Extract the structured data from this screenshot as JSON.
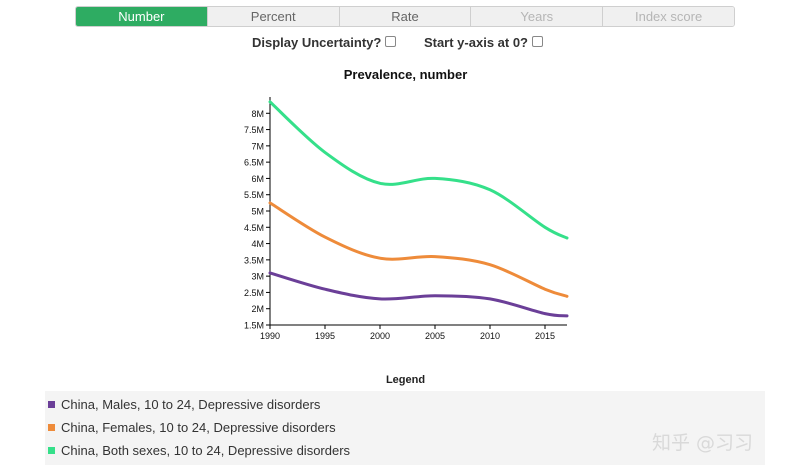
{
  "tabs": [
    {
      "label": "Number",
      "state": "active"
    },
    {
      "label": "Percent",
      "state": "normal"
    },
    {
      "label": "Rate",
      "state": "normal"
    },
    {
      "label": "Years",
      "state": "disabled"
    },
    {
      "label": "Index score",
      "state": "disabled"
    }
  ],
  "options": {
    "uncertainty_label": "Display Uncertainty?",
    "uncertainty_checked": false,
    "yaxis_zero_label": "Start y-axis at 0?",
    "yaxis_zero_checked": false
  },
  "legend": {
    "title": "Legend"
  },
  "watermark": "知乎 @习习",
  "chart_data": {
    "type": "line",
    "title": "Prevalence, number",
    "xlabel": "",
    "ylabel": "",
    "xlim": [
      1990,
      2017
    ],
    "ylim": [
      1500000,
      8500000
    ],
    "x_ticks": [
      1990,
      1995,
      2000,
      2005,
      2010,
      2015
    ],
    "x_tick_labels": [
      "1990",
      "1995",
      "2000",
      "2005",
      "2010",
      "2015"
    ],
    "y_ticks": [
      1500000,
      2000000,
      2500000,
      3000000,
      3500000,
      4000000,
      4500000,
      5000000,
      5500000,
      6000000,
      6500000,
      7000000,
      7500000,
      8000000
    ],
    "y_tick_labels": [
      "1.5M",
      "2M",
      "2.5M",
      "3M",
      "3.5M",
      "4M",
      "4.5M",
      "5M",
      "5.5M",
      "6M",
      "6.5M",
      "7M",
      "7.5M",
      "8M"
    ],
    "grid": false,
    "legend_position": "bottom",
    "x": [
      1990,
      1995,
      2000,
      2005,
      2010,
      2015,
      2017
    ],
    "series": [
      {
        "name": "China, Males, 10 to 24, Depressive disorders",
        "color": "#6b3f98",
        "values": [
          3100000,
          2600000,
          2300000,
          2400000,
          2300000,
          1850000,
          1780000
        ]
      },
      {
        "name": "China, Females, 10 to 24, Depressive disorders",
        "color": "#ee8b3a",
        "values": [
          5250000,
          4200000,
          3550000,
          3600000,
          3350000,
          2600000,
          2380000
        ]
      },
      {
        "name": "China, Both sexes, 10 to 24, Depressive disorders",
        "color": "#35e08a",
        "values": [
          8350000,
          6800000,
          5850000,
          6000000,
          5650000,
          4500000,
          4170000
        ]
      }
    ]
  }
}
